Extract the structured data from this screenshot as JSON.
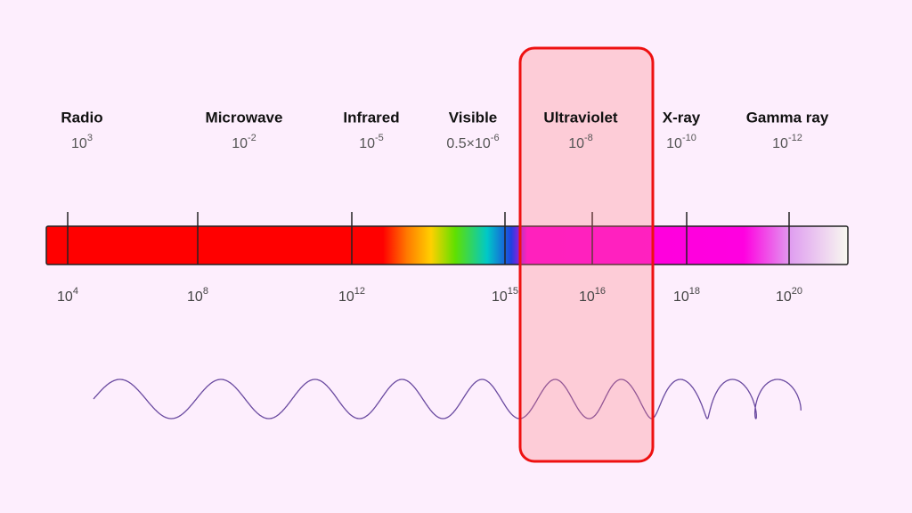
{
  "bands": [
    {
      "name": "Radio",
      "wavelength": {
        "base": "10",
        "exp": "3"
      }
    },
    {
      "name": "Microwave",
      "wavelength": {
        "base": "10",
        "exp": "-2"
      }
    },
    {
      "name": "Infrared",
      "wavelength": {
        "base": "10",
        "exp": "-5"
      }
    },
    {
      "name": "Visible",
      "wavelength": {
        "base": "0.5×10",
        "exp": "-6"
      }
    },
    {
      "name": "Ultraviolet",
      "wavelength": {
        "base": "10",
        "exp": "-8"
      }
    },
    {
      "name": "X-ray",
      "wavelength": {
        "base": "10",
        "exp": "-10"
      }
    },
    {
      "name": "Gamma ray",
      "wavelength": {
        "base": "10",
        "exp": "-12"
      }
    }
  ],
  "frequency_ticks": [
    {
      "base": "10",
      "exp": "4"
    },
    {
      "base": "10",
      "exp": "8"
    },
    {
      "base": "10",
      "exp": "12"
    },
    {
      "base": "10",
      "exp": "15"
    },
    {
      "base": "10",
      "exp": "16"
    },
    {
      "base": "10",
      "exp": "18"
    },
    {
      "base": "10",
      "exp": "20"
    }
  ]
}
